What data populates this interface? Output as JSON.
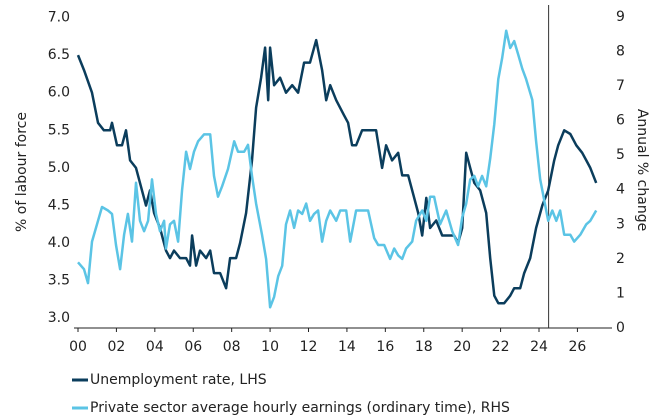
{
  "chart_data": {
    "type": "line",
    "ylabel": "% of labour force",
    "y2label": "Annual % change",
    "xlim": [
      0,
      27.8
    ],
    "xticks": [
      {
        "value": 0,
        "label": "00"
      },
      {
        "value": 2,
        "label": "02"
      },
      {
        "value": 4,
        "label": "04"
      },
      {
        "value": 6,
        "label": "06"
      },
      {
        "value": 8,
        "label": "08"
      },
      {
        "value": 10,
        "label": "10"
      },
      {
        "value": 12,
        "label": "12"
      },
      {
        "value": 14,
        "label": "14"
      },
      {
        "value": 16,
        "label": "16"
      },
      {
        "value": 18,
        "label": "18"
      },
      {
        "value": 20,
        "label": "20"
      },
      {
        "value": 22,
        "label": "22"
      },
      {
        "value": 24,
        "label": "24"
      },
      {
        "value": 26,
        "label": "26"
      }
    ],
    "ylim": [
      2.87,
      7.1
    ],
    "yticks": [
      {
        "value": 3,
        "label": "3.0"
      },
      3.5,
      {
        "value": 4,
        "label": "4.0"
      },
      4.5,
      {
        "value": 5,
        "label": "5.0"
      },
      5.5,
      {
        "value": 6,
        "label": "6.0"
      },
      6.5,
      {
        "value": 7,
        "label": "7.0"
      }
    ],
    "y2lim": [
      0,
      9.2
    ],
    "y2ticks": [
      0,
      1,
      2,
      3,
      4,
      5,
      6,
      7,
      8,
      9
    ],
    "vertical_line_x": 24.5,
    "series": [
      {
        "name": "Unemployment rate, LHS",
        "color": "#0b3d5c",
        "axis": "y",
        "x": [
          0,
          0.31,
          0.73,
          1.04,
          1.35,
          1.67,
          1.77,
          2.03,
          2.29,
          2.5,
          2.71,
          3.02,
          3.23,
          3.54,
          3.75,
          3.96,
          4.27,
          4.58,
          4.79,
          5.0,
          5.31,
          5.63,
          5.83,
          5.94,
          6.15,
          6.35,
          6.67,
          6.88,
          7.08,
          7.4,
          7.71,
          7.92,
          8.23,
          8.44,
          8.75,
          9.06,
          9.27,
          9.53,
          9.74,
          9.9,
          10.0,
          10.21,
          10.52,
          10.83,
          11.15,
          11.46,
          11.77,
          12.08,
          12.4,
          12.71,
          12.92,
          13.13,
          13.44,
          13.85,
          14.06,
          14.27,
          14.48,
          14.79,
          15.21,
          15.52,
          15.83,
          16.04,
          16.35,
          16.67,
          16.88,
          17.19,
          17.5,
          17.71,
          17.92,
          18.13,
          18.33,
          18.65,
          18.96,
          19.27,
          19.58,
          19.79,
          20.0,
          20.21,
          20.42,
          20.63,
          20.94,
          21.25,
          21.46,
          21.67,
          21.88,
          22.19,
          22.5,
          22.71,
          23.02,
          23.23,
          23.54,
          23.85,
          24.17,
          24.48,
          24.79,
          25.0,
          25.31,
          25.63,
          25.94,
          26.25,
          26.46,
          26.67,
          26.98
        ],
        "values": [
          6.5,
          6.3,
          6.0,
          5.6,
          5.5,
          5.5,
          5.6,
          5.3,
          5.3,
          5.5,
          5.1,
          5.0,
          4.8,
          4.5,
          4.7,
          4.4,
          4.2,
          3.9,
          3.8,
          3.9,
          3.8,
          3.8,
          3.7,
          4.1,
          3.7,
          3.9,
          3.8,
          3.9,
          3.6,
          3.6,
          3.4,
          3.8,
          3.8,
          4.0,
          4.4,
          5.1,
          5.8,
          6.2,
          6.6,
          5.9,
          6.6,
          6.1,
          6.2,
          6.0,
          6.1,
          6.0,
          6.4,
          6.4,
          6.7,
          6.3,
          5.9,
          6.1,
          5.9,
          5.7,
          5.6,
          5.3,
          5.3,
          5.5,
          5.5,
          5.5,
          5.0,
          5.3,
          5.1,
          5.2,
          4.9,
          4.9,
          4.6,
          4.4,
          4.1,
          4.6,
          4.2,
          4.3,
          4.1,
          4.1,
          4.1,
          4.0,
          4.2,
          5.2,
          5.0,
          4.8,
          4.7,
          4.4,
          3.8,
          3.3,
          3.2,
          3.2,
          3.3,
          3.4,
          3.4,
          3.6,
          3.8,
          4.2,
          4.5,
          4.7,
          5.1,
          5.3,
          5.5,
          5.45,
          5.3,
          5.2,
          5.1,
          5.0,
          4.8
        ]
      },
      {
        "name": "Private sector average hourly earnings (ordinary time), RHS",
        "color": "#5bc4e5",
        "axis": "y2",
        "x": [
          0,
          0.31,
          0.52,
          0.73,
          1.04,
          1.25,
          1.56,
          1.77,
          1.98,
          2.19,
          2.4,
          2.6,
          2.81,
          3.02,
          3.23,
          3.44,
          3.65,
          3.85,
          4.06,
          4.27,
          4.48,
          4.58,
          4.79,
          5.0,
          5.21,
          5.42,
          5.63,
          5.83,
          6.04,
          6.25,
          6.56,
          6.88,
          7.08,
          7.29,
          7.5,
          7.81,
          8.13,
          8.33,
          8.65,
          8.85,
          9.06,
          9.27,
          9.58,
          9.79,
          10.0,
          10.21,
          10.42,
          10.63,
          10.83,
          11.04,
          11.25,
          11.46,
          11.67,
          11.88,
          12.08,
          12.29,
          12.5,
          12.71,
          12.92,
          13.13,
          13.44,
          13.65,
          13.96,
          14.17,
          14.48,
          14.79,
          15.1,
          15.42,
          15.63,
          15.94,
          16.25,
          16.46,
          16.67,
          16.88,
          17.08,
          17.4,
          17.6,
          17.92,
          18.13,
          18.33,
          18.54,
          18.85,
          19.17,
          19.48,
          19.79,
          20.0,
          20.21,
          20.42,
          20.63,
          20.83,
          21.04,
          21.25,
          21.46,
          21.67,
          21.88,
          22.08,
          22.29,
          22.5,
          22.71,
          22.92,
          23.13,
          23.33,
          23.65,
          23.85,
          24.06,
          24.27,
          24.48,
          24.69,
          24.9,
          25.1,
          25.31,
          25.63,
          25.83,
          26.15,
          26.46,
          26.67,
          26.98
        ],
        "values": [
          1.9,
          1.7,
          1.3,
          2.5,
          3.1,
          3.5,
          3.4,
          3.3,
          2.4,
          1.7,
          2.7,
          3.3,
          2.5,
          4.2,
          3.1,
          2.8,
          3.1,
          4.3,
          3.3,
          2.8,
          3.1,
          2.3,
          3.0,
          3.1,
          2.5,
          4.0,
          5.1,
          4.6,
          5.1,
          5.4,
          5.6,
          5.6,
          4.4,
          3.8,
          4.1,
          4.6,
          5.4,
          5.1,
          5.1,
          5.3,
          4.4,
          3.6,
          2.7,
          2.0,
          0.6,
          0.9,
          1.5,
          1.8,
          3.0,
          3.4,
          2.9,
          3.4,
          3.3,
          3.6,
          3.1,
          3.3,
          3.4,
          2.5,
          3.1,
          3.4,
          3.1,
          3.4,
          3.4,
          2.5,
          3.4,
          3.4,
          3.4,
          2.6,
          2.4,
          2.4,
          2.0,
          2.3,
          2.1,
          2.0,
          2.3,
          2.5,
          3.1,
          3.4,
          3.1,
          3.8,
          3.8,
          3.0,
          3.4,
          2.8,
          2.4,
          3.2,
          3.6,
          4.3,
          4.4,
          4.1,
          4.4,
          4.1,
          4.9,
          5.9,
          7.2,
          7.8,
          8.6,
          8.1,
          8.3,
          7.9,
          7.5,
          7.2,
          6.6,
          5.4,
          4.3,
          3.7,
          3.1,
          3.4,
          3.1,
          3.4,
          2.7,
          2.7,
          2.5,
          2.7,
          3.0,
          3.1,
          3.4
        ]
      }
    ]
  }
}
